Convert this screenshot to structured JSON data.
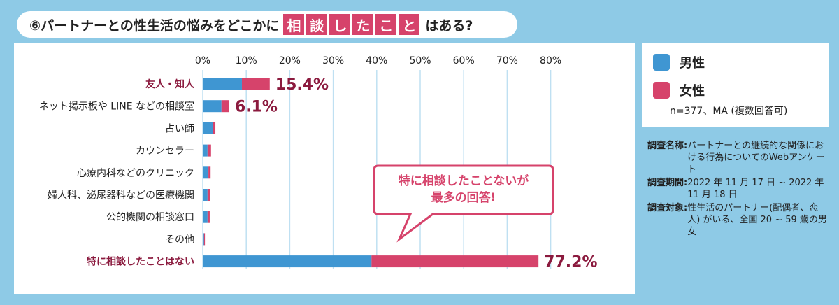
{
  "title": {
    "prefix": "⑥パートナーとの性生活の悩みをどこかに",
    "highlight_chars": [
      "相",
      "談",
      "し",
      "た",
      "こ",
      "と"
    ],
    "suffix": "はある?"
  },
  "colors": {
    "male": "#3f96d2",
    "female": "#d6436b",
    "highlight_label": "#8b1a3e",
    "grid": "#bfe0f2",
    "background": "#8ecae6"
  },
  "chart_data": {
    "type": "bar",
    "orientation": "horizontal",
    "stacked": true,
    "categories": [
      "友人・知人",
      "ネット掲示板や LINE などの相談室",
      "占い師",
      "カウンセラー",
      "心療内科などのクリニック",
      "婦人科、泌尿器科などの医療機関",
      "公的機関の相談窓口",
      "その他",
      "特に相談したことはない"
    ],
    "highlighted_categories": [
      "友人・知人",
      "特に相談したことはない"
    ],
    "series": [
      {
        "name": "男性",
        "values": [
          9.0,
          4.3,
          2.4,
          1.1,
          1.3,
          1.1,
          1.1,
          0.3,
          38.8
        ]
      },
      {
        "name": "女性",
        "values": [
          6.4,
          1.8,
          0.5,
          0.8,
          0.5,
          0.6,
          0.5,
          0.2,
          38.4
        ]
      }
    ],
    "data_labels": [
      "15.4%",
      "6.1%",
      "",
      "",
      "",
      "",
      "",
      "",
      "77.2%"
    ],
    "x_ticks": [
      "0%",
      "10%",
      "20%",
      "30%",
      "40%",
      "50%",
      "60%",
      "70%",
      "80%"
    ],
    "xlim": [
      0,
      80
    ],
    "grid": true,
    "annotation": {
      "lines": [
        "特に相談したことないが",
        "最多の回答!"
      ]
    }
  },
  "legend": {
    "items": [
      {
        "label": "男性"
      },
      {
        "label": "女性"
      }
    ],
    "note": "n=377、MA (複数回答可)"
  },
  "survey": [
    {
      "key": "調査名称:",
      "value": "パートナーとの継続的な関係における行為についてのWebアンケート"
    },
    {
      "key": "調査期間:",
      "value": "2022 年 11 月 17 日 ~ 2022 年 11 月 18 日"
    },
    {
      "key": "調査対象:",
      "value": "性生活のパートナー(配偶者、恋人) がいる、全国 20 ~ 59 歳の男女"
    }
  ]
}
